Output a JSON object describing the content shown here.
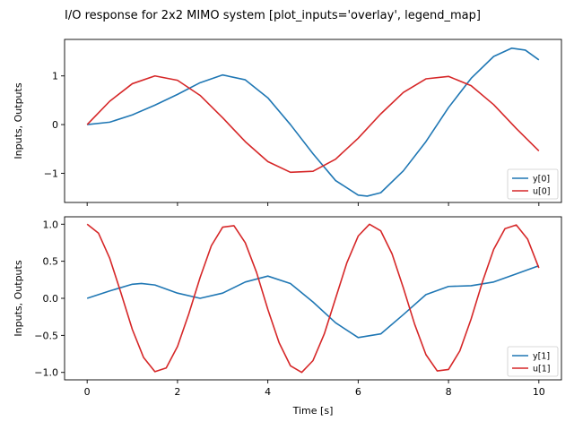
{
  "figure": {
    "title": "I/O response for 2x2 MIMO system [plot_inputs='overlay', legend_map]"
  },
  "chart_data": [
    {
      "type": "line",
      "ylabel": "Inputs, Outputs",
      "xlabel": "",
      "xlim": [
        -0.5,
        10.5
      ],
      "ylim": [
        -1.6,
        1.75
      ],
      "xticks": [
        0,
        2,
        4,
        6,
        8,
        10
      ],
      "show_xtick_labels": false,
      "yticks": [
        -1,
        0,
        1
      ],
      "ytick_labels": [
        "−1",
        "0",
        "1"
      ],
      "legend_position": "lower-right",
      "series": [
        {
          "name": "y[0]",
          "color": "#1f77b4",
          "x": [
            0,
            0.5,
            1,
            1.5,
            2,
            2.5,
            3,
            3.5,
            4,
            4.5,
            5,
            5.5,
            6,
            6.2,
            6.5,
            7,
            7.5,
            8,
            8.5,
            9,
            9.4,
            9.7,
            10
          ],
          "values": [
            0.0,
            0.05,
            0.2,
            0.4,
            0.62,
            0.86,
            1.02,
            0.92,
            0.55,
            0.0,
            -0.6,
            -1.15,
            -1.45,
            -1.47,
            -1.4,
            -0.95,
            -0.35,
            0.35,
            0.95,
            1.4,
            1.57,
            1.53,
            1.33
          ]
        },
        {
          "name": "u[0]",
          "color": "#d62728",
          "x": [
            0,
            0.5,
            1,
            1.5,
            2,
            2.5,
            3,
            3.5,
            4,
            4.5,
            5,
            5.5,
            6,
            6.5,
            7,
            7.5,
            8,
            8.5,
            9,
            9.5,
            10
          ],
          "values": [
            0.0,
            0.48,
            0.84,
            1.0,
            0.91,
            0.6,
            0.14,
            -0.35,
            -0.76,
            -0.98,
            -0.96,
            -0.71,
            -0.28,
            0.22,
            0.66,
            0.94,
            0.99,
            0.8,
            0.41,
            -0.08,
            -0.54
          ]
        }
      ]
    },
    {
      "type": "line",
      "ylabel": "Inputs, Outputs",
      "xlabel": "Time [s]",
      "xlim": [
        -0.5,
        10.5
      ],
      "ylim": [
        -1.1,
        1.1
      ],
      "xticks": [
        0,
        2,
        4,
        6,
        8,
        10
      ],
      "show_xtick_labels": true,
      "yticks": [
        -1.0,
        -0.5,
        0.0,
        0.5,
        1.0
      ],
      "ytick_labels": [
        "−1.0",
        "−0.5",
        "0.0",
        "0.5",
        "1.0"
      ],
      "legend_position": "lower-right",
      "series": [
        {
          "name": "y[1]",
          "color": "#1f77b4",
          "x": [
            0,
            0.5,
            1,
            1.2,
            1.5,
            2,
            2.5,
            3,
            3.5,
            4,
            4.5,
            5,
            5.5,
            6,
            6.5,
            7,
            7.5,
            8,
            8.5,
            9,
            9.5,
            10
          ],
          "values": [
            0.0,
            0.1,
            0.19,
            0.2,
            0.18,
            0.07,
            0.0,
            0.07,
            0.22,
            0.3,
            0.2,
            -0.05,
            -0.33,
            -0.53,
            -0.48,
            -0.22,
            0.05,
            0.16,
            0.17,
            0.22,
            0.33,
            0.44
          ]
        },
        {
          "name": "u[1]",
          "color": "#d62728",
          "x": [
            0,
            0.25,
            0.5,
            0.75,
            1,
            1.25,
            1.5,
            1.75,
            2,
            2.25,
            2.5,
            2.75,
            3,
            3.25,
            3.5,
            3.75,
            4,
            4.25,
            4.5,
            4.75,
            5,
            5.25,
            5.5,
            5.75,
            6,
            6.25,
            6.5,
            6.75,
            7,
            7.25,
            7.5,
            7.75,
            8,
            8.25,
            8.5,
            8.75,
            9,
            9.25,
            9.5,
            9.75,
            10
          ],
          "values": [
            1.0,
            0.88,
            0.54,
            0.07,
            -0.42,
            -0.8,
            -0.99,
            -0.94,
            -0.65,
            -0.21,
            0.28,
            0.71,
            0.96,
            0.98,
            0.75,
            0.35,
            -0.15,
            -0.6,
            -0.91,
            -1.0,
            -0.84,
            -0.48,
            0.0,
            0.48,
            0.84,
            1.0,
            0.91,
            0.6,
            0.14,
            -0.35,
            -0.76,
            -0.98,
            -0.96,
            -0.71,
            -0.28,
            0.22,
            0.66,
            0.94,
            0.99,
            0.8,
            0.41
          ]
        }
      ]
    }
  ]
}
